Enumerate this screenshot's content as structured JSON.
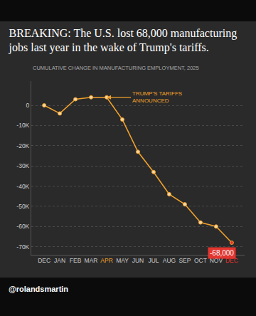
{
  "chart_data": {
    "type": "line",
    "title": "BREAKING: The U.S. lost 68,000 manufacturing jobs last year in the wake of Trump's tariffs.",
    "subtitle": "CUMULATIVE CHANGE IN MANUFACTURING EMPLOYMENT, 2025",
    "categories": [
      "DEC",
      "JAN",
      "FEB",
      "MAR",
      "APR",
      "MAY",
      "JUN",
      "JUL",
      "AUG",
      "SEP",
      "OCT",
      "NOV",
      "DEC"
    ],
    "values": [
      0,
      -4000,
      3000,
      4000,
      4000,
      -7000,
      -23000,
      -33000,
      -44000,
      -49000,
      -58000,
      -60000,
      -68000
    ],
    "color": "#f0a12c",
    "marker": "circle",
    "ylim": [
      -74000,
      12000
    ],
    "yticks": [
      0,
      {
        "value": -10000,
        "label": "-10K"
      },
      {
        "value": -20000,
        "label": "-20K"
      },
      {
        "value": -30000,
        "label": "-30K"
      },
      {
        "value": -40000,
        "label": "-40K"
      },
      {
        "value": -50000,
        "label": "-50K"
      },
      {
        "value": -60000,
        "label": "-60K"
      },
      {
        "value": -70000,
        "label": "-70K"
      }
    ],
    "grid": true,
    "annotations": [
      {
        "text": "TRUMP'S TARIFFS ANNOUNCED",
        "x": 4,
        "y": 4000
      },
      {
        "text": "-68,000",
        "x": 12,
        "y": -68000
      }
    ]
  },
  "credit": "@rolandsmartin"
}
